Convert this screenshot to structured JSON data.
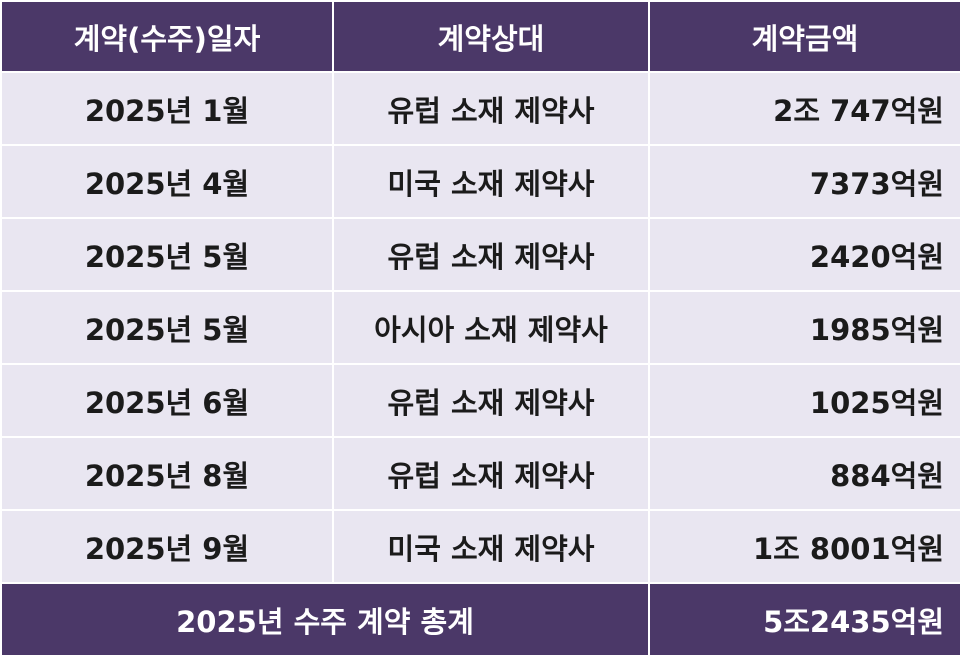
{
  "header": {
    "columns": [
      "계약(수주)일자",
      "계약상대",
      "계약금액"
    ]
  },
  "table": {
    "rows": [
      [
        "2025년 1월",
        "유럽 소재 제약사",
        "2조 747억원"
      ],
      [
        "2025년 4월",
        "미국 소재 제약사",
        "7373억원"
      ],
      [
        "2025년 5월",
        "유럽 소재 제약사",
        "2420억원"
      ],
      [
        "2025년 5월",
        "아시아 소재 제약사",
        "1985억원"
      ],
      [
        "2025년 6월",
        "유럽 소재 제약사",
        "1025억원"
      ],
      [
        "2025년 8월",
        "유럽 소재 제약사",
        "884억원"
      ],
      [
        "2025년 9월",
        "미국 소재 제약사",
        "1조 8001억원"
      ]
    ]
  },
  "footer": {
    "label": "2025년 수주 계약 총계",
    "total": "5조2435억원"
  }
}
